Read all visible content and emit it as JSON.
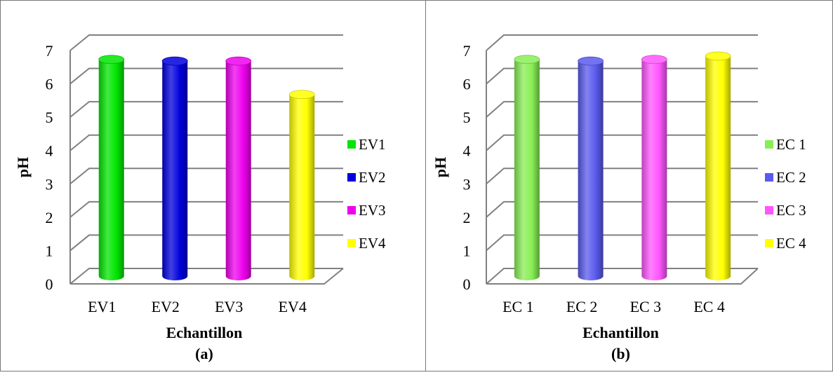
{
  "chart_data": [
    {
      "type": "bar",
      "title": "",
      "caption": "(a)",
      "xlabel": "Echantillon",
      "ylabel": "pH",
      "ylim": [
        0,
        7
      ],
      "yticks": [
        "0",
        "1",
        "2",
        "3",
        "4",
        "5",
        "6",
        "7"
      ],
      "categories": [
        "EV1",
        "EV2",
        "EV3",
        "EV4"
      ],
      "values": [
        6.5,
        6.45,
        6.45,
        5.45
      ],
      "colors": [
        "#00e600",
        "#0000dd",
        "#ee00ee",
        "#ffff00"
      ],
      "legend": [
        "EV1",
        "EV2",
        "EV3",
        "EV4"
      ],
      "legend_position": "right",
      "grid": true
    },
    {
      "type": "bar",
      "title": "",
      "caption": "(b)",
      "xlabel": "Echantillon",
      "ylabel": "pH",
      "ylim": [
        0,
        7
      ],
      "yticks": [
        "0",
        "1",
        "2",
        "3",
        "4",
        "5",
        "6",
        "7"
      ],
      "categories": [
        "EC 1",
        "EC 2",
        "EC 3",
        "EC 4"
      ],
      "values": [
        6.5,
        6.45,
        6.5,
        6.6
      ],
      "colors": [
        "#88ee55",
        "#5a5aee",
        "#ff55ff",
        "#ffff00"
      ],
      "legend": [
        "EC 1",
        "EC 2",
        "EC 3",
        "EC 4"
      ],
      "legend_position": "right",
      "grid": true
    }
  ]
}
